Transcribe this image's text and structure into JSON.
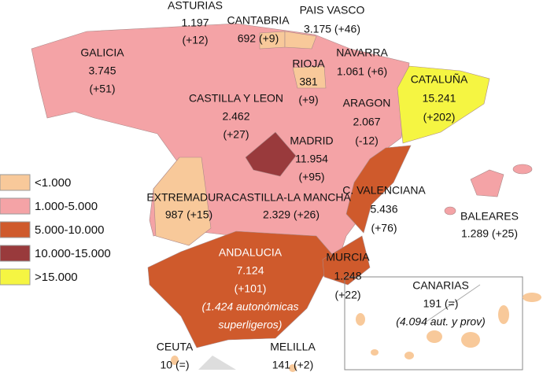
{
  "legend": [
    {
      "label": "<1.000",
      "color": "#f8c99a"
    },
    {
      "label": "1.000-5.000",
      "color": "#f4a3a6"
    },
    {
      "label": "5.000-10.000",
      "color": "#cf5a2c"
    },
    {
      "label": "10.000-15.000",
      "color": "#993a3c"
    },
    {
      "label": ">15.000",
      "color": "#f5f542"
    }
  ],
  "regions": [
    {
      "lines": [
        "GALICIA",
        "3.745",
        "(+51)"
      ]
    },
    {
      "lines": [
        "ASTURIAS",
        "1.197",
        "(+12)"
      ]
    },
    {
      "lines": [
        "CANTABRIA",
        "692 (+9)"
      ]
    },
    {
      "lines": [
        "PAIS VASCO",
        "3.175 (+46)"
      ]
    },
    {
      "lines": [
        "RIOJA",
        "381",
        "(+9)"
      ]
    },
    {
      "lines": [
        "NAVARRA",
        "1.061 (+6)"
      ]
    },
    {
      "lines": [
        "CATALUÑA",
        "15.241",
        "(+202)"
      ]
    },
    {
      "lines": [
        "CASTILLA Y LEON",
        "2.462",
        "(+27)"
      ]
    },
    {
      "lines": [
        "ARAGON",
        "2.067",
        "(-12)"
      ]
    },
    {
      "lines": [
        "MADRID",
        "11.954",
        "(+95)"
      ]
    },
    {
      "lines": [
        "EXTREMADURA",
        "987 (+15)"
      ]
    },
    {
      "lines": [
        "CASTILLA-LA MANCHA",
        "2.329 (+26)"
      ]
    },
    {
      "lines": [
        "C. VALENCIANA",
        "5.436",
        "(+76)"
      ]
    },
    {
      "lines": [
        "BALEARES",
        "1.289 (+25)"
      ]
    },
    {
      "lines": [
        "ANDALUCIA",
        "7.124",
        "(+101)",
        "(1.424 autonómicas",
        "superligeros)"
      ]
    },
    {
      "lines": [
        "MURCIA",
        "1.248",
        "(+22)"
      ]
    },
    {
      "lines": [
        "CANARIAS",
        "191 (=)",
        "(4.094 aut. y prov)"
      ]
    },
    {
      "lines": [
        "CEUTA",
        "10 (=)"
      ]
    },
    {
      "lines": [
        "MELILLA",
        "141 (+2)"
      ]
    }
  ]
}
